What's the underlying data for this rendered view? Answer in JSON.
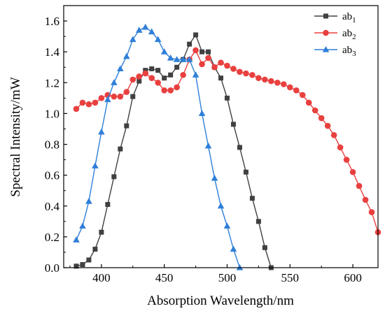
{
  "chart_data": {
    "type": "line",
    "title": "",
    "xlabel": "Absorption Wavelength/nm",
    "ylabel": "Spectral Intensity/mW",
    "xlim": [
      370,
      620
    ],
    "ylim": [
      0,
      1.7
    ],
    "x_ticks": [
      {
        "value": 400,
        "label": "400"
      },
      {
        "value": 450,
        "label": "450"
      },
      {
        "value": 500,
        "label": "500"
      },
      {
        "value": 550,
        "label": "550"
      },
      {
        "value": 600,
        "label": "600"
      }
    ],
    "y_ticks": [
      {
        "value": 0.0,
        "label": "0.0"
      },
      {
        "value": 0.2,
        "label": "0.2"
      },
      {
        "value": 0.4,
        "label": "0.4"
      },
      {
        "value": 0.6,
        "label": "0.6"
      },
      {
        "value": 0.8,
        "label": "0.8"
      },
      {
        "value": 1.0,
        "label": "1.0"
      },
      {
        "value": 1.2,
        "label": "1.2"
      },
      {
        "value": 1.4,
        "label": "1.4"
      },
      {
        "value": 1.6,
        "label": "1.6"
      }
    ],
    "grid": false,
    "legend_position": "top-right",
    "series": [
      {
        "name": "ab",
        "subscript": "1",
        "color": "#404040",
        "marker": "square",
        "points": [
          [
            380,
            0.01
          ],
          [
            385,
            0.02
          ],
          [
            390,
            0.05
          ],
          [
            395,
            0.12
          ],
          [
            400,
            0.23
          ],
          [
            405,
            0.41
          ],
          [
            410,
            0.59
          ],
          [
            415,
            0.77
          ],
          [
            420,
            0.92
          ],
          [
            425,
            1.11
          ],
          [
            430,
            1.21
          ],
          [
            435,
            1.28
          ],
          [
            440,
            1.29
          ],
          [
            445,
            1.28
          ],
          [
            450,
            1.23
          ],
          [
            455,
            1.25
          ],
          [
            460,
            1.3
          ],
          [
            465,
            1.35
          ],
          [
            470,
            1.45
          ],
          [
            475,
            1.51
          ],
          [
            480,
            1.4
          ],
          [
            485,
            1.4
          ],
          [
            490,
            1.3
          ],
          [
            495,
            1.23
          ],
          [
            500,
            1.1
          ],
          [
            505,
            0.93
          ],
          [
            510,
            0.78
          ],
          [
            515,
            0.62
          ],
          [
            520,
            0.45
          ],
          [
            525,
            0.3
          ],
          [
            530,
            0.13
          ],
          [
            535,
            0.0
          ]
        ]
      },
      {
        "name": "ab",
        "subscript": "2",
        "color": "#e8403f",
        "marker": "circle",
        "points": [
          [
            380,
            1.03
          ],
          [
            385,
            1.07
          ],
          [
            390,
            1.06
          ],
          [
            395,
            1.07
          ],
          [
            400,
            1.1
          ],
          [
            405,
            1.12
          ],
          [
            410,
            1.11
          ],
          [
            415,
            1.11
          ],
          [
            420,
            1.14
          ],
          [
            425,
            1.22
          ],
          [
            430,
            1.24
          ],
          [
            435,
            1.26
          ],
          [
            440,
            1.23
          ],
          [
            445,
            1.2
          ],
          [
            450,
            1.15
          ],
          [
            455,
            1.15
          ],
          [
            460,
            1.17
          ],
          [
            465,
            1.25
          ],
          [
            470,
            1.35
          ],
          [
            475,
            1.41
          ],
          [
            480,
            1.32
          ],
          [
            485,
            1.36
          ],
          [
            490,
            1.3
          ],
          [
            495,
            1.33
          ],
          [
            500,
            1.31
          ],
          [
            505,
            1.29
          ],
          [
            510,
            1.27
          ],
          [
            515,
            1.26
          ],
          [
            520,
            1.25
          ],
          [
            525,
            1.23
          ],
          [
            530,
            1.22
          ],
          [
            535,
            1.21
          ],
          [
            540,
            1.2
          ],
          [
            545,
            1.19
          ],
          [
            550,
            1.17
          ],
          [
            555,
            1.15
          ],
          [
            560,
            1.12
          ],
          [
            565,
            1.07
          ],
          [
            570,
            1.02
          ],
          [
            575,
            0.97
          ],
          [
            580,
            0.92
          ],
          [
            585,
            0.86
          ],
          [
            590,
            0.78
          ],
          [
            595,
            0.7
          ],
          [
            600,
            0.62
          ],
          [
            605,
            0.53
          ],
          [
            610,
            0.44
          ],
          [
            615,
            0.36
          ],
          [
            620,
            0.23
          ]
        ]
      },
      {
        "name": "ab",
        "subscript": "3",
        "color": "#2f7fd8",
        "marker": "triangle",
        "points": [
          [
            380,
            0.18
          ],
          [
            385,
            0.27
          ],
          [
            390,
            0.43
          ],
          [
            395,
            0.66
          ],
          [
            400,
            0.88
          ],
          [
            405,
            1.09
          ],
          [
            410,
            1.2
          ],
          [
            415,
            1.29
          ],
          [
            420,
            1.37
          ],
          [
            425,
            1.48
          ],
          [
            430,
            1.54
          ],
          [
            435,
            1.56
          ],
          [
            440,
            1.53
          ],
          [
            445,
            1.48
          ],
          [
            450,
            1.4
          ],
          [
            455,
            1.36
          ],
          [
            460,
            1.35
          ],
          [
            465,
            1.35
          ],
          [
            470,
            1.35
          ],
          [
            475,
            1.25
          ],
          [
            480,
            1.0
          ],
          [
            485,
            0.79
          ],
          [
            490,
            0.58
          ],
          [
            495,
            0.4
          ],
          [
            500,
            0.27
          ],
          [
            505,
            0.12
          ],
          [
            510,
            0.0
          ]
        ]
      }
    ]
  }
}
